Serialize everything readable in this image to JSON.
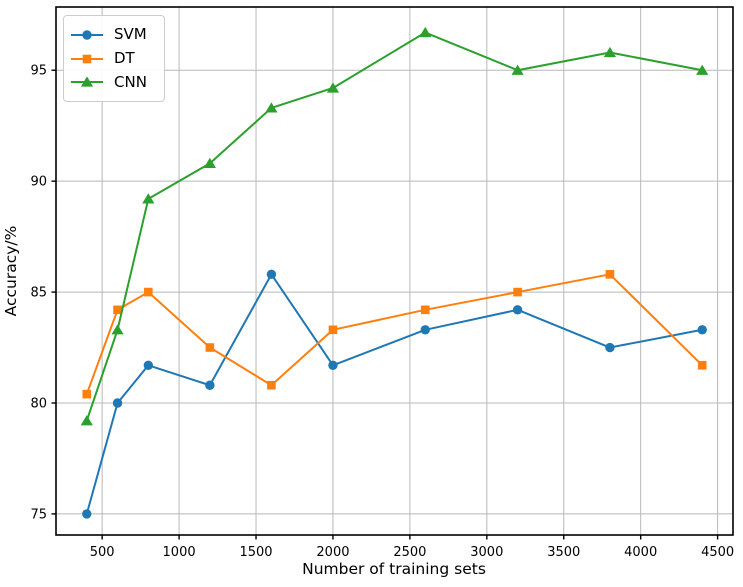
{
  "chart_data": {
    "type": "line",
    "title": "",
    "xlabel": "Number of training sets",
    "ylabel": "Accuracy/%",
    "x": [
      400,
      600,
      800,
      1200,
      1600,
      2000,
      2600,
      3200,
      3800,
      4400
    ],
    "series": [
      {
        "name": "SVM",
        "marker": "circle",
        "color": "#1f77b4",
        "values": [
          75.0,
          80.0,
          81.7,
          80.8,
          85.8,
          81.7,
          83.3,
          84.2,
          82.5,
          83.3
        ]
      },
      {
        "name": "DT",
        "marker": "square",
        "color": "#ff7f0e",
        "values": [
          80.4,
          84.2,
          85.0,
          82.5,
          80.8,
          83.3,
          84.2,
          85.0,
          85.8,
          81.7
        ]
      },
      {
        "name": "CNN",
        "marker": "triangle",
        "color": "#2ca02c",
        "values": [
          79.2,
          83.3,
          89.2,
          90.8,
          93.3,
          94.2,
          96.7,
          95.0,
          95.8,
          95.0
        ]
      }
    ],
    "xlim": [
      200,
      4600
    ],
    "ylim": [
      74.05,
      97.85
    ],
    "xticks": [
      500,
      1000,
      1500,
      2000,
      2500,
      3000,
      3500,
      4000,
      4500
    ],
    "yticks": [
      75,
      80,
      85,
      90,
      95
    ],
    "grid": true,
    "legend_position": "upper-left",
    "legend_entries": [
      "SVM",
      "DT",
      "CNN"
    ]
  },
  "colors": {
    "background": "#ffffff",
    "grid": "#b8b8b8",
    "spine": "#000000",
    "text": "#000000",
    "legend_border": "#cccccc"
  }
}
